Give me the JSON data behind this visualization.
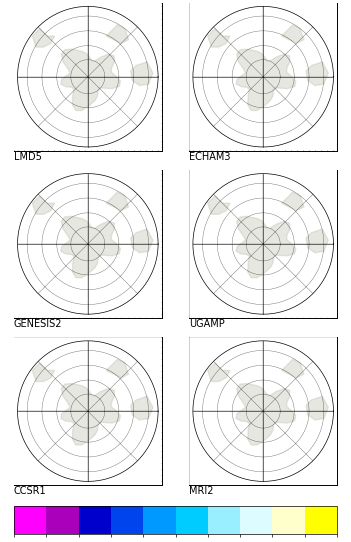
{
  "panels": [
    {
      "label": "LMD5",
      "row": 0,
      "col": 0
    },
    {
      "label": "ECHAM3",
      "row": 0,
      "col": 1
    },
    {
      "label": "GENESIS2",
      "row": 1,
      "col": 0
    },
    {
      "label": "UGAMP",
      "row": 1,
      "col": 1
    },
    {
      "label": "CCSR1",
      "row": 2,
      "col": 0
    },
    {
      "label": "MRI2",
      "row": 2,
      "col": 1
    }
  ],
  "colorbar_boundaries": [
    -40,
    -25,
    -20,
    -15,
    -10,
    -5,
    -2,
    0,
    2,
    5,
    10
  ],
  "colorbar_colors": [
    "#FF00FF",
    "#AA00BB",
    "#0000CC",
    "#0044EE",
    "#0099FF",
    "#00CCFF",
    "#99EEFF",
    "#DDFCFF",
    "#FFFFCC",
    "#FFFF00"
  ],
  "label_fontsize": 7,
  "bg_ocean": "#AADDEE",
  "panel_bg": "#C8EEF5"
}
